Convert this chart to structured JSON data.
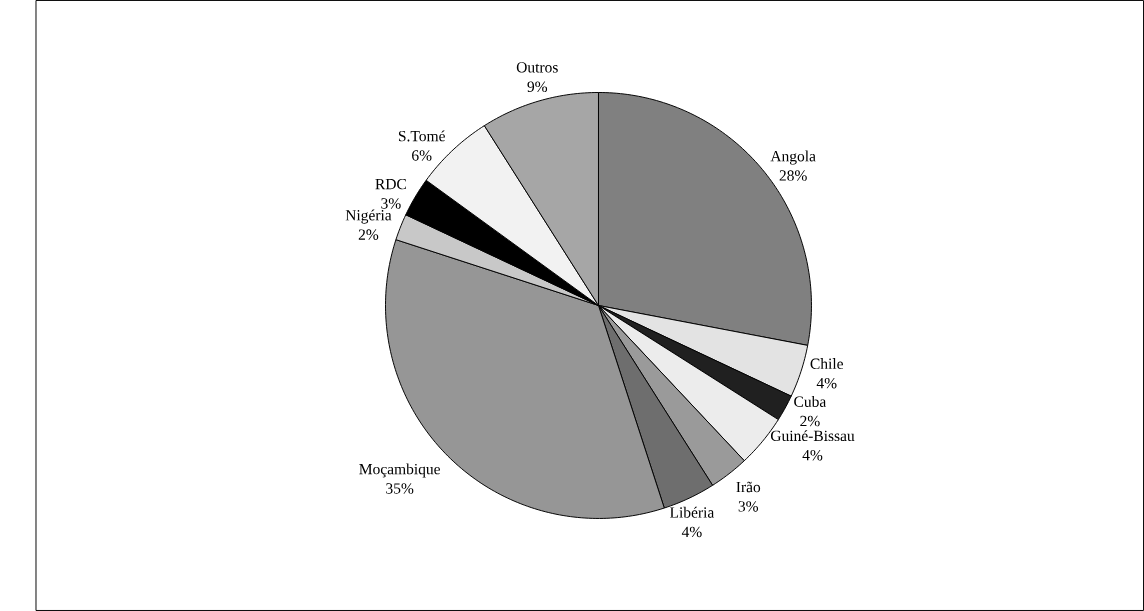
{
  "chart_data": {
    "type": "pie",
    "categories": [
      "Angola",
      "Chile",
      "Cuba",
      "Guiné-Bissau",
      "Irão",
      "Libéria",
      "Moçambique",
      "Nigéria",
      "RDC",
      "S.Tomé",
      "Outros"
    ],
    "values": [
      28,
      4,
      2,
      4,
      3,
      4,
      35,
      2,
      3,
      6,
      9
    ],
    "value_labels": [
      "28%",
      "4%",
      "2%",
      "4%",
      "3%",
      "4%",
      "35%",
      "2%",
      "3%",
      "6%",
      "9%"
    ],
    "colors": [
      "#808080",
      "#e3e3e3",
      "#202020",
      "#ececec",
      "#9a9a9a",
      "#6e6e6e",
      "#969696",
      "#c8c8c8",
      "#000000",
      "#f2f2f2",
      "#a6a6a6"
    ]
  }
}
